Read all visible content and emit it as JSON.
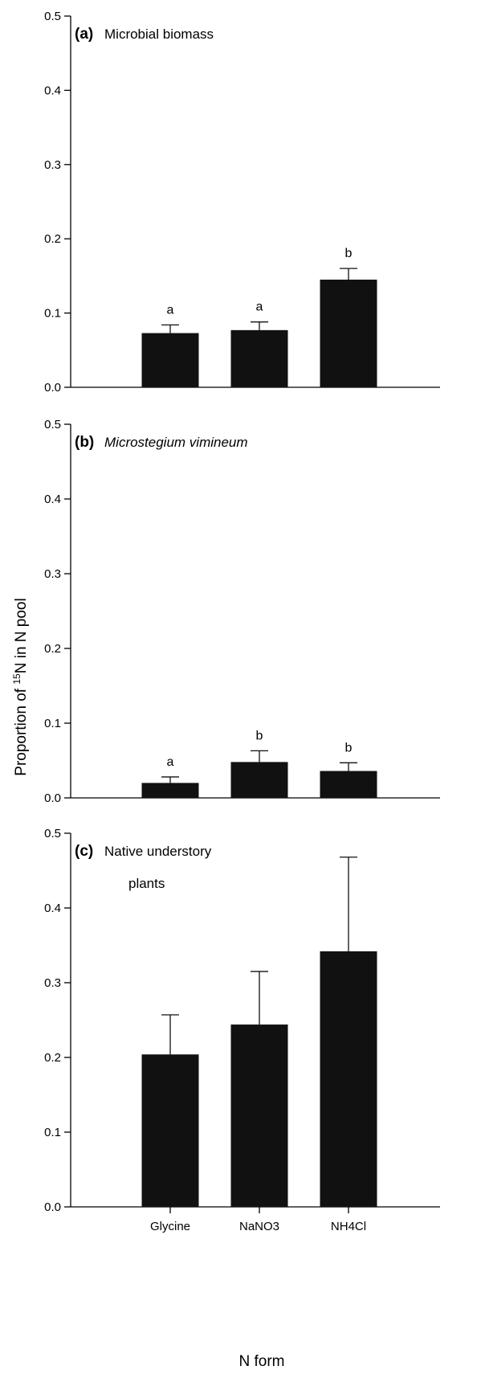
{
  "figure": {
    "ylabel_prefix": "Proportion of ",
    "ylabel_sup": "15",
    "ylabel_suffix": "N in N pool",
    "xlabel": "N form"
  },
  "chart_data": [
    {
      "type": "bar",
      "panel_letter": "(a)",
      "title": [
        "Microbial biomass"
      ],
      "title_italic": false,
      "categories": [
        "Glycine",
        "NaNO3",
        "NH4Cl"
      ],
      "values": [
        0.073,
        0.077,
        0.145
      ],
      "errors": [
        0.011,
        0.011,
        0.015
      ],
      "significance": [
        "a",
        "a",
        "b"
      ],
      "ylim": [
        0,
        0.5
      ],
      "yticks": [
        "0.0",
        "0.1",
        "0.2",
        "0.3",
        "0.4",
        "0.5"
      ],
      "show_category_labels": false
    },
    {
      "type": "bar",
      "panel_letter": "(b)",
      "title": [
        "Microstegium vimineum"
      ],
      "title_italic": true,
      "categories": [
        "Glycine",
        "NaNO3",
        "NH4Cl"
      ],
      "values": [
        0.02,
        0.048,
        0.036
      ],
      "errors": [
        0.008,
        0.015,
        0.011
      ],
      "significance": [
        "a",
        "b",
        "b"
      ],
      "ylim": [
        0,
        0.5
      ],
      "yticks": [
        "0.0",
        "0.1",
        "0.2",
        "0.3",
        "0.4",
        "0.5"
      ],
      "show_category_labels": false
    },
    {
      "type": "bar",
      "panel_letter": "(c)",
      "title": [
        "Native understory",
        "plants"
      ],
      "title_italic": false,
      "categories": [
        "Glycine",
        "NaNO3",
        "NH4Cl"
      ],
      "values": [
        0.204,
        0.244,
        0.342
      ],
      "errors": [
        0.053,
        0.071,
        0.126
      ],
      "significance": [
        "",
        "",
        ""
      ],
      "ylim": [
        0,
        0.5
      ],
      "yticks": [
        "0.0",
        "0.1",
        "0.2",
        "0.3",
        "0.4",
        "0.5"
      ],
      "show_category_labels": true
    }
  ]
}
